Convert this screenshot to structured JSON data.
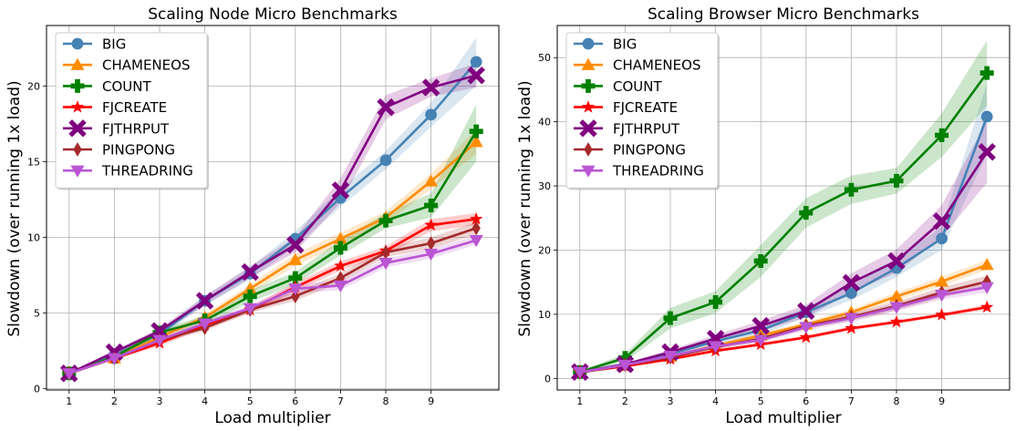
{
  "chart_data": [
    {
      "type": "line",
      "title": "Scaling Node Micro Benchmarks",
      "xlabel": "Load multiplier",
      "ylabel": "Slowdown (over running 1x load)",
      "x": [
        1,
        2,
        3,
        4,
        5,
        6,
        7,
        8,
        9,
        10
      ],
      "xticks": [
        1,
        2,
        3,
        4,
        5,
        6,
        7,
        8,
        9
      ],
      "xlim": [
        0.5,
        10.5
      ],
      "ylim": [
        -0.1,
        24
      ],
      "yticks": [
        0,
        5,
        10,
        15,
        20
      ],
      "grid": true,
      "legend_position": "top-left",
      "series": [
        {
          "name": "BIG",
          "color": "#4682b4",
          "marker": "circle",
          "values": [
            1.0,
            2.2,
            3.6,
            5.8,
            7.6,
            9.9,
            12.6,
            15.1,
            18.1,
            21.6
          ],
          "band": [
            [
              0.95,
              1.05
            ],
            [
              2.1,
              2.3
            ],
            [
              3.4,
              3.8
            ],
            [
              5.5,
              6.1
            ],
            [
              7.2,
              8.0
            ],
            [
              9.4,
              10.4
            ],
            [
              12.0,
              13.2
            ],
            [
              14.5,
              15.7
            ],
            [
              17.3,
              18.9
            ],
            [
              20.0,
              23.2
            ]
          ]
        },
        {
          "name": "CHAMENEOS",
          "color": "#ff8c00",
          "marker": "triangle-up",
          "values": [
            1.0,
            2.0,
            3.4,
            4.7,
            6.6,
            8.5,
            9.9,
            11.3,
            13.7,
            16.3
          ],
          "band": [
            [
              0.95,
              1.05
            ],
            [
              1.9,
              2.1
            ],
            [
              3.2,
              3.6
            ],
            [
              4.5,
              4.9
            ],
            [
              6.3,
              6.9
            ],
            [
              8.1,
              8.9
            ],
            [
              9.5,
              10.3
            ],
            [
              10.9,
              11.7
            ],
            [
              13.2,
              14.2
            ],
            [
              15.5,
              17.1
            ]
          ]
        },
        {
          "name": "COUNT",
          "color": "#008000",
          "marker": "plus",
          "values": [
            1.0,
            2.1,
            3.7,
            4.5,
            6.1,
            7.3,
            9.3,
            11.1,
            12.1,
            17.0
          ],
          "band": [
            [
              0.95,
              1.05
            ],
            [
              2.0,
              2.2
            ],
            [
              3.5,
              3.9
            ],
            [
              4.2,
              4.8
            ],
            [
              5.7,
              6.5
            ],
            [
              6.9,
              7.7
            ],
            [
              8.8,
              9.8
            ],
            [
              10.6,
              11.6
            ],
            [
              11.3,
              12.9
            ],
            [
              15.0,
              18.8
            ]
          ]
        },
        {
          "name": "FJCREATE",
          "color": "#ff0000",
          "marker": "star",
          "values": [
            1.0,
            2.0,
            3.0,
            4.2,
            5.2,
            6.7,
            8.1,
            9.1,
            10.8,
            11.2
          ],
          "band": [
            [
              0.95,
              1.05
            ],
            [
              1.9,
              2.1
            ],
            [
              2.8,
              3.2
            ],
            [
              4.0,
              4.4
            ],
            [
              5.0,
              5.4
            ],
            [
              6.4,
              7.0
            ],
            [
              7.8,
              8.4
            ],
            [
              8.8,
              9.4
            ],
            [
              10.4,
              11.2
            ],
            [
              10.8,
              11.6
            ]
          ]
        },
        {
          "name": "FJTHRPUT",
          "color": "#800080",
          "marker": "x-filled",
          "values": [
            1.0,
            2.4,
            3.8,
            5.8,
            7.7,
            9.5,
            13.1,
            18.6,
            19.9,
            20.7
          ],
          "band": [
            [
              0.95,
              1.05
            ],
            [
              2.3,
              2.5
            ],
            [
              3.6,
              4.0
            ],
            [
              5.5,
              6.1
            ],
            [
              7.3,
              8.1
            ],
            [
              9.0,
              10.0
            ],
            [
              12.3,
              13.9
            ],
            [
              17.8,
              19.4
            ],
            [
              19.3,
              20.5
            ],
            [
              19.9,
              21.5
            ]
          ]
        },
        {
          "name": "PINGPONG",
          "color": "#a52a2a",
          "marker": "diamond",
          "values": [
            1.0,
            2.0,
            3.2,
            4.0,
            5.2,
            6.1,
            7.3,
            9.0,
            9.6,
            10.6
          ],
          "band": [
            [
              0.95,
              1.05
            ],
            [
              1.9,
              2.1
            ],
            [
              3.0,
              3.4
            ],
            [
              3.8,
              4.2
            ],
            [
              5.0,
              5.4
            ],
            [
              5.8,
              6.4
            ],
            [
              7.0,
              7.6
            ],
            [
              8.7,
              9.3
            ],
            [
              9.2,
              10.0
            ],
            [
              10.2,
              11.0
            ]
          ]
        },
        {
          "name": "THREADRING",
          "color": "#ba55d3",
          "marker": "triangle-down",
          "values": [
            1.0,
            2.0,
            3.2,
            4.3,
            5.3,
            6.6,
            6.8,
            8.3,
            8.9,
            9.8
          ],
          "band": [
            [
              0.95,
              1.05
            ],
            [
              1.9,
              2.1
            ],
            [
              3.0,
              3.4
            ],
            [
              4.1,
              4.5
            ],
            [
              5.1,
              5.5
            ],
            [
              6.3,
              6.9
            ],
            [
              6.5,
              7.1
            ],
            [
              8.0,
              8.6
            ],
            [
              8.6,
              9.2
            ],
            [
              9.5,
              10.1
            ]
          ]
        }
      ]
    },
    {
      "type": "line",
      "title": "Scaling Browser Micro Benchmarks",
      "xlabel": "Load multiplier",
      "ylabel": "Slowdown (over running 1x load)",
      "x": [
        1,
        2,
        3,
        4,
        5,
        6,
        7,
        8,
        9,
        10
      ],
      "xticks": [
        1,
        2,
        3,
        4,
        5,
        6,
        7,
        8,
        9
      ],
      "xlim": [
        0.5,
        10.5
      ],
      "ylim": [
        -1.8,
        55
      ],
      "yticks": [
        0,
        10,
        20,
        30,
        40,
        50
      ],
      "grid": true,
      "legend_position": "top-left",
      "series": [
        {
          "name": "BIG",
          "color": "#4682b4",
          "marker": "circle",
          "values": [
            1.0,
            2.2,
            3.8,
            5.8,
            7.5,
            10.3,
            13.3,
            17.2,
            21.8,
            40.8
          ],
          "band": [
            [
              0.9,
              1.1
            ],
            [
              2.0,
              2.4
            ],
            [
              3.4,
              4.2
            ],
            [
              5.2,
              6.4
            ],
            [
              6.8,
              8.2
            ],
            [
              9.5,
              11.1
            ],
            [
              12.2,
              14.4
            ],
            [
              15.8,
              18.6
            ],
            [
              20.0,
              23.6
            ],
            [
              35.0,
              46.0
            ]
          ]
        },
        {
          "name": "CHAMENEOS",
          "color": "#ff8c00",
          "marker": "triangle-up",
          "values": [
            1.0,
            2.0,
            3.4,
            5.1,
            6.7,
            8.4,
            10.3,
            12.8,
            15.1,
            17.7
          ],
          "band": [
            [
              0.9,
              1.1
            ],
            [
              1.9,
              2.1
            ],
            [
              3.2,
              3.6
            ],
            [
              4.8,
              5.4
            ],
            [
              6.3,
              7.1
            ],
            [
              8.0,
              8.8
            ],
            [
              9.8,
              10.8
            ],
            [
              12.2,
              13.4
            ],
            [
              14.4,
              15.8
            ],
            [
              16.9,
              18.5
            ]
          ]
        },
        {
          "name": "COUNT",
          "color": "#008000",
          "marker": "plus",
          "values": [
            1.0,
            3.2,
            9.4,
            11.9,
            18.3,
            25.8,
            29.4,
            30.8,
            37.9,
            47.6
          ],
          "band": [
            [
              0.8,
              1.2
            ],
            [
              2.6,
              3.8
            ],
            [
              7.8,
              11.0
            ],
            [
              10.2,
              13.6
            ],
            [
              15.8,
              20.8
            ],
            [
              23.5,
              28.1
            ],
            [
              27.2,
              31.6
            ],
            [
              28.8,
              32.8
            ],
            [
              34.5,
              41.3
            ],
            [
              42.5,
              52.7
            ]
          ]
        },
        {
          "name": "FJCREATE",
          "color": "#ff0000",
          "marker": "star",
          "values": [
            1.0,
            1.9,
            3.0,
            4.3,
            5.3,
            6.4,
            7.8,
            8.8,
            9.9,
            11.1
          ],
          "band": [
            [
              0.9,
              1.1
            ],
            [
              1.8,
              2.0
            ],
            [
              2.8,
              3.2
            ],
            [
              4.1,
              4.5
            ],
            [
              5.0,
              5.6
            ],
            [
              6.1,
              6.7
            ],
            [
              7.5,
              8.1
            ],
            [
              8.5,
              9.1
            ],
            [
              9.6,
              10.2
            ],
            [
              10.7,
              11.5
            ]
          ]
        },
        {
          "name": "FJTHRPUT",
          "color": "#800080",
          "marker": "x-filled",
          "values": [
            1.0,
            2.2,
            4.1,
            6.2,
            8.2,
            10.5,
            14.9,
            18.3,
            24.5,
            35.3
          ],
          "band": [
            [
              0.9,
              1.1
            ],
            [
              2.0,
              2.4
            ],
            [
              3.7,
              4.5
            ],
            [
              5.6,
              6.8
            ],
            [
              7.4,
              9.0
            ],
            [
              9.5,
              11.5
            ],
            [
              13.4,
              16.4
            ],
            [
              16.5,
              20.1
            ],
            [
              22.0,
              27.0
            ],
            [
              30.5,
              40.1
            ]
          ]
        },
        {
          "name": "PINGPONG",
          "color": "#a52a2a",
          "marker": "diamond",
          "values": [
            0.9,
            2.1,
            3.3,
            4.9,
            6.2,
            8.2,
            9.6,
            11.3,
            13.4,
            15.1
          ],
          "band": [
            [
              0.8,
              1.0
            ],
            [
              1.9,
              2.3
            ],
            [
              3.0,
              3.6
            ],
            [
              4.5,
              5.3
            ],
            [
              5.8,
              6.6
            ],
            [
              7.7,
              8.7
            ],
            [
              9.0,
              10.2
            ],
            [
              10.6,
              12.0
            ],
            [
              12.6,
              14.2
            ],
            [
              14.2,
              16.0
            ]
          ]
        },
        {
          "name": "THREADRING",
          "color": "#ba55d3",
          "marker": "triangle-down",
          "values": [
            1.0,
            2.1,
            3.5,
            5.0,
            6.0,
            8.0,
            9.4,
            11.1,
            13.0,
            14.2
          ],
          "band": [
            [
              0.9,
              1.1
            ],
            [
              1.9,
              2.3
            ],
            [
              3.2,
              3.8
            ],
            [
              4.6,
              5.4
            ],
            [
              5.6,
              6.4
            ],
            [
              7.5,
              8.5
            ],
            [
              8.8,
              10.0
            ],
            [
              10.5,
              11.7
            ],
            [
              12.3,
              13.7
            ],
            [
              13.4,
              15.0
            ]
          ]
        }
      ]
    }
  ]
}
